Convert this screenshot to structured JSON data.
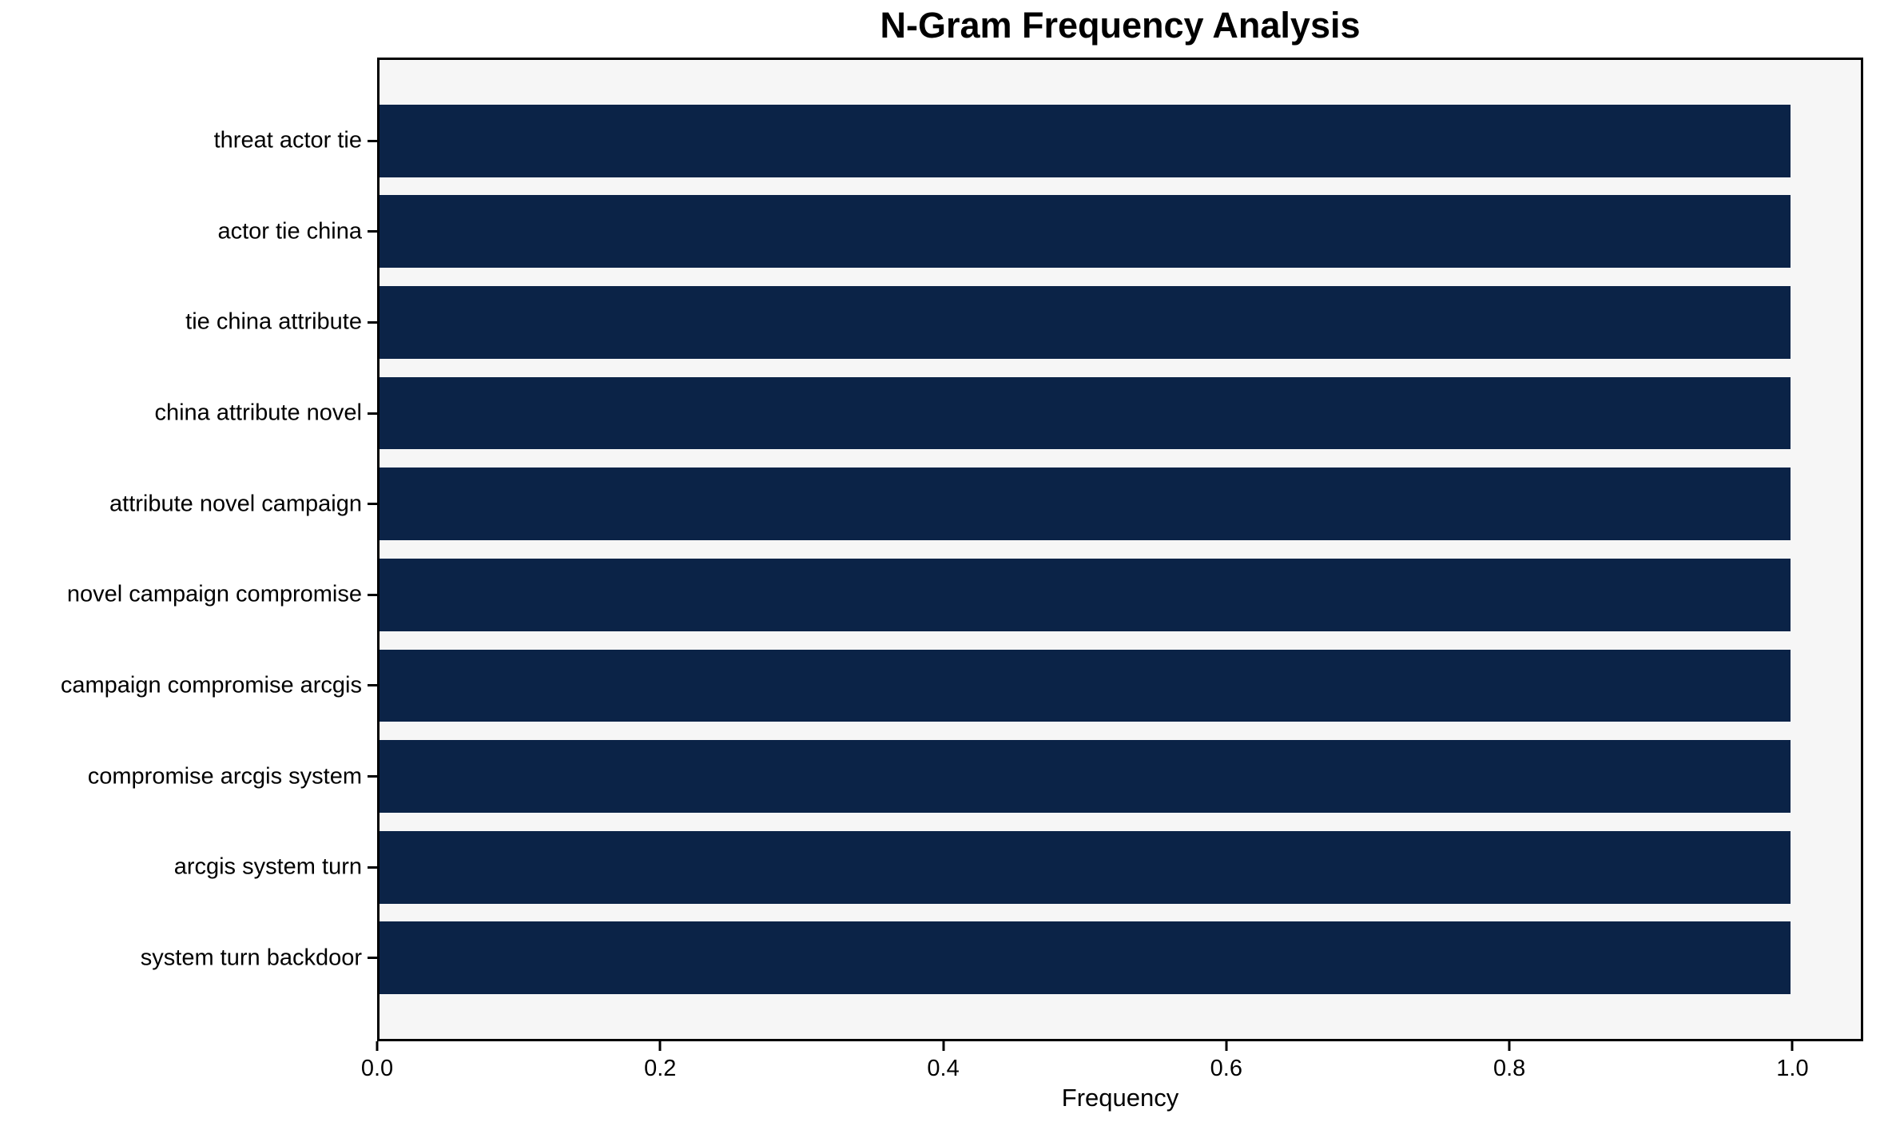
{
  "title": "N-Gram Frequency Analysis",
  "chart_data": {
    "type": "bar",
    "orientation": "horizontal",
    "title": "N-Gram Frequency Analysis",
    "categories": [
      "threat actor tie",
      "actor tie china",
      "tie china attribute",
      "china attribute novel",
      "attribute novel campaign",
      "novel campaign compromise",
      "campaign compromise arcgis",
      "compromise arcgis system",
      "arcgis system turn",
      "system turn backdoor"
    ],
    "values": [
      1.0,
      1.0,
      1.0,
      1.0,
      1.0,
      1.0,
      1.0,
      1.0,
      1.0,
      1.0
    ],
    "xlabel": "Frequency",
    "ylabel": "",
    "xlim": [
      0,
      1.05
    ],
    "xticks": [
      {
        "value": 0.0,
        "label": "0.0"
      },
      {
        "value": 0.2,
        "label": "0.2"
      },
      {
        "value": 0.4,
        "label": "0.4"
      },
      {
        "value": 0.6,
        "label": "0.6"
      },
      {
        "value": 0.8,
        "label": "0.8"
      },
      {
        "value": 1.0,
        "label": "1.0"
      }
    ],
    "grid": false,
    "legend": "none",
    "colors": {
      "bar": "#0b2347",
      "plot_background": "#f6f6f6",
      "figure_background": "#ffffff",
      "spine": "#000000",
      "text": "#000000"
    }
  }
}
